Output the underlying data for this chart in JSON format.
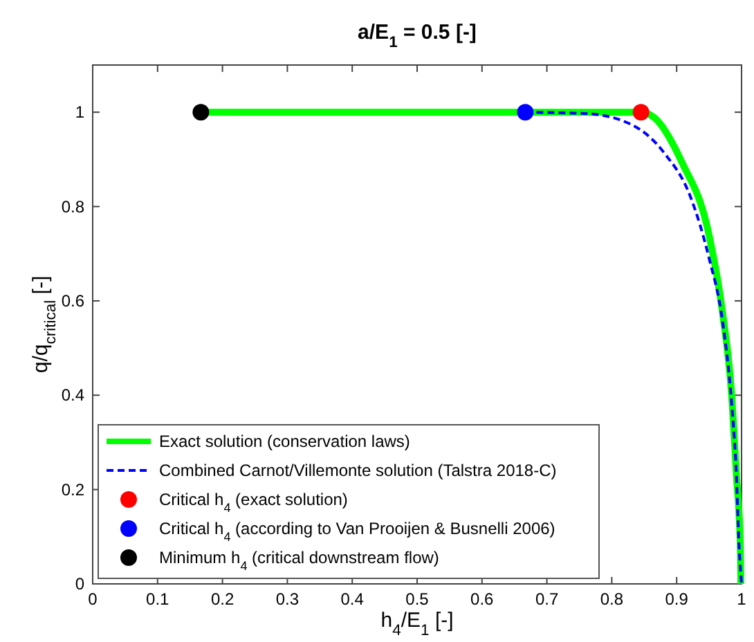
{
  "chart_data": {
    "type": "line",
    "title": "a/E$_{1}$ = 0.5 [-]",
    "xlabel": "h$_{4}$/E$_{1}$ [-]",
    "ylabel": "q/q$_{critical}$ [-]",
    "xlim": [
      0,
      1
    ],
    "ylim": [
      0,
      1.1
    ],
    "xticks": [
      0,
      0.1,
      0.2,
      0.3,
      0.4,
      0.5,
      0.6,
      0.7,
      0.8,
      0.9,
      1
    ],
    "yticks": [
      0,
      0.2,
      0.4,
      0.6,
      0.8,
      1
    ],
    "grid": false,
    "legend": "bottom left",
    "series": [
      {
        "name": "Exact solution (conservation laws)",
        "line_style": "solid",
        "color": "#00ff00",
        "x": [
          0.1667,
          0.845,
          0.866,
          0.908,
          0.95,
          0.971,
          0.985,
          0.992,
          0.998,
          0.999
        ],
        "values": [
          1,
          1,
          0.988,
          0.894,
          0.739,
          0.572,
          0.396,
          0.232,
          0.085,
          0
        ]
      },
      {
        "name": "Combined Carnot/Villemonte solution (Talstra 2018-C)",
        "line_style": "dashed",
        "color": "#0000ff",
        "x": [
          0.6667,
          0.761,
          0.83,
          0.88,
          0.922,
          0.95,
          0.971,
          0.985,
          0.992,
          0.996,
          1
        ],
        "values": [
          1,
          0.997,
          0.974,
          0.915,
          0.818,
          0.69,
          0.554,
          0.378,
          0.232,
          0.085,
          0
        ]
      },
      {
        "name": "Critical h$_{4}$ (exact solution)",
        "type": "scatter",
        "marker": "circle",
        "color": "#ff0000",
        "x": [
          0.845
        ],
        "values": [
          1
        ]
      },
      {
        "name": "Critical h$_{4}$ (according to Van Prooijen & Busnelli 2006)",
        "type": "scatter",
        "marker": "circle",
        "color": "#0000ff",
        "x": [
          0.6667
        ],
        "values": [
          1
        ]
      },
      {
        "name": "Minimum h$_{4}$ (critical downstream flow)",
        "type": "scatter",
        "marker": "circle",
        "color": "#000000",
        "x": [
          0.1667
        ],
        "values": [
          1
        ]
      }
    ]
  }
}
